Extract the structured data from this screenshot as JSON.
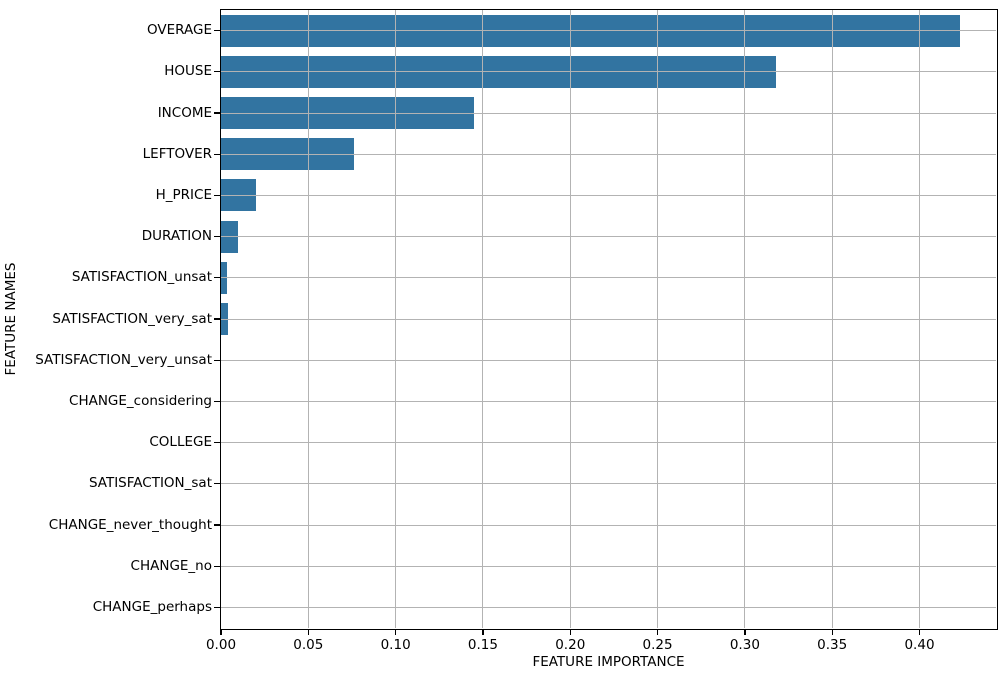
{
  "figure": {
    "background": "#ffffff"
  },
  "chart_data": {
    "type": "bar",
    "orientation": "horizontal",
    "title": "",
    "xlabel": "FEATURE IMPORTANCE",
    "ylabel": "FEATURE NAMES",
    "categories": [
      "OVERAGE",
      "HOUSE",
      "INCOME",
      "LEFTOVER",
      "H_PRICE",
      "DURATION",
      "SATISFACTION_unsat",
      "SATISFACTION_very_sat",
      "SATISFACTION_very_unsat",
      "CHANGE_considering",
      "COLLEGE",
      "SATISFACTION_sat",
      "CHANGE_never_thought",
      "CHANGE_no",
      "CHANGE_perhaps"
    ],
    "values": [
      0.423,
      0.318,
      0.145,
      0.076,
      0.02,
      0.01,
      0.0035,
      0.004,
      0,
      0,
      0,
      0,
      0,
      0,
      0
    ],
    "xlim": [
      0,
      0.4438
    ],
    "xticks": [
      0,
      0.05,
      0.1,
      0.15,
      0.2,
      0.25,
      0.3,
      0.35,
      0.4
    ],
    "xtick_labels": [
      "0.00",
      "0.05",
      "0.10",
      "0.15",
      "0.20",
      "0.25",
      "0.30",
      "0.35",
      "0.40"
    ],
    "grid": true,
    "grid_above_bars": true,
    "legend": false,
    "bar_color": "#3274a1",
    "grid_color": "#b3b3b3",
    "axis_color": "#000000",
    "tick_label_color": "#000000"
  }
}
